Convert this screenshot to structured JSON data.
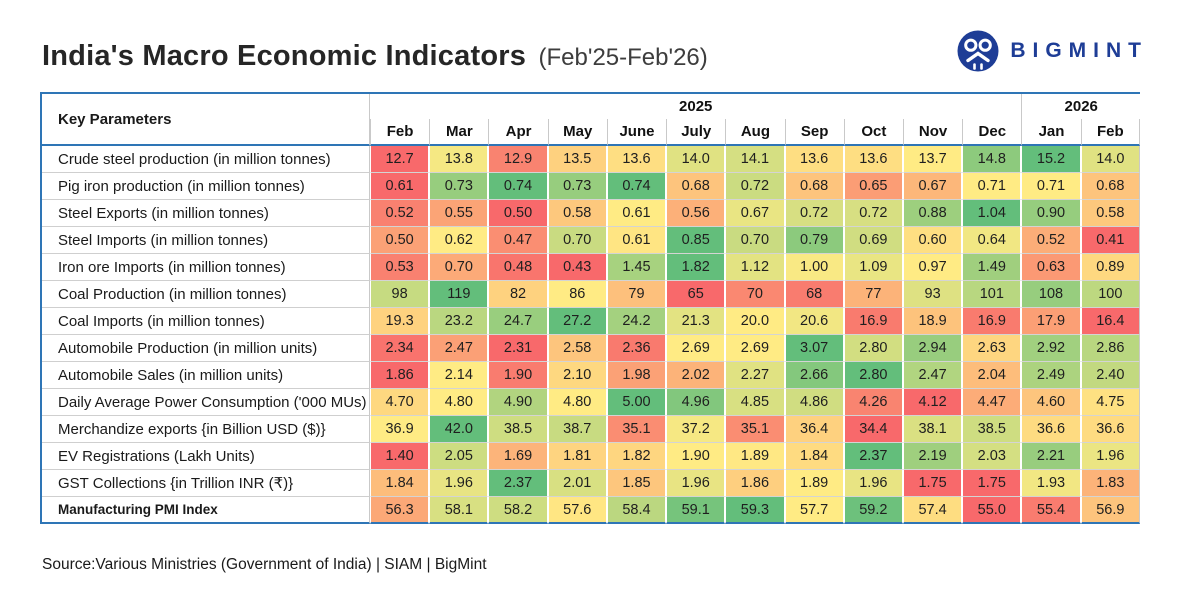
{
  "header": {
    "title": "India's Macro Economic Indicators",
    "subtitle": "(Feb'25-Feb'26)",
    "brand": "BIGMINT"
  },
  "table_meta": {
    "key_parameters_label": "Key Parameters"
  },
  "chart_data": {
    "type": "heatmap",
    "title": "India's Macro Economic Indicators (Feb'25-Feb'26)",
    "columns": [
      "Feb",
      "Mar",
      "Apr",
      "May",
      "June",
      "July",
      "Aug",
      "Sep",
      "Oct",
      "Nov",
      "Dec",
      "Jan",
      "Feb"
    ],
    "year_groups": [
      {
        "label": "2025",
        "span": 11
      },
      {
        "label": "2026",
        "span": 2
      }
    ],
    "rows": [
      {
        "label": "Crude steel production (in million tonnes)",
        "values": [
          "12.7",
          "13.8",
          "12.9",
          "13.5",
          "13.6",
          "14.0",
          "14.1",
          "13.6",
          "13.6",
          "13.7",
          "14.8",
          "15.2",
          "14.0"
        ]
      },
      {
        "label": "Pig iron production (in million tonnes)",
        "values": [
          "0.61",
          "0.73",
          "0.74",
          "0.73",
          "0.74",
          "0.68",
          "0.72",
          "0.68",
          "0.65",
          "0.67",
          "0.71",
          "0.71",
          "0.68"
        ]
      },
      {
        "label": "Steel Exports (in million tonnes)",
        "values": [
          "0.52",
          "0.55",
          "0.50",
          "0.58",
          "0.61",
          "0.56",
          "0.67",
          "0.72",
          "0.72",
          "0.88",
          "1.04",
          "0.90",
          "0.58"
        ]
      },
      {
        "label": "Steel Imports (in million tonnes)",
        "values": [
          "0.50",
          "0.62",
          "0.47",
          "0.70",
          "0.61",
          "0.85",
          "0.70",
          "0.79",
          "0.69",
          "0.60",
          "0.64",
          "0.52",
          "0.41"
        ]
      },
      {
        "label": "Iron ore Imports (in million tonnes)",
        "values": [
          "0.53",
          "0.70",
          "0.48",
          "0.43",
          "1.45",
          "1.82",
          "1.12",
          "1.00",
          "1.09",
          "0.97",
          "1.49",
          "0.63",
          "0.89"
        ]
      },
      {
        "label": "Coal Production (in million tonnes)",
        "values": [
          "98",
          "119",
          "82",
          "86",
          "79",
          "65",
          "70",
          "68",
          "77",
          "93",
          "101",
          "108",
          "100"
        ]
      },
      {
        "label": "Coal Imports (in million tonnes)",
        "values": [
          "19.3",
          "23.2",
          "24.7",
          "27.2",
          "24.2",
          "21.3",
          "20.0",
          "20.6",
          "16.9",
          "18.9",
          "16.9",
          "17.9",
          "16.4"
        ]
      },
      {
        "label": "Automobile Production (in million units)",
        "values": [
          "2.34",
          "2.47",
          "2.31",
          "2.58",
          "2.36",
          "2.69",
          "2.69",
          "3.07",
          "2.80",
          "2.94",
          "2.63",
          "2.92",
          "2.86"
        ]
      },
      {
        "label": "Automobile Sales (in million units)",
        "values": [
          "1.86",
          "2.14",
          "1.90",
          "2.10",
          "1.98",
          "2.02",
          "2.27",
          "2.66",
          "2.80",
          "2.47",
          "2.04",
          "2.49",
          "2.40"
        ]
      },
      {
        "label": "Daily Average Power Consumption ('000 MUs)",
        "values": [
          "4.70",
          "4.80",
          "4.90",
          "4.80",
          "5.00",
          "4.96",
          "4.85",
          "4.86",
          "4.26",
          "4.12",
          "4.47",
          "4.60",
          "4.75"
        ]
      },
      {
        "label": "Merchandize exports {in Billion USD ($)}",
        "values": [
          "36.9",
          "42.0",
          "38.5",
          "38.7",
          "35.1",
          "37.2",
          "35.1",
          "36.4",
          "34.4",
          "38.1",
          "38.5",
          "36.6",
          "36.6"
        ]
      },
      {
        "label": "EV Registrations (Lakh Units)",
        "values": [
          "1.40",
          "2.05",
          "1.69",
          "1.81",
          "1.82",
          "1.90",
          "1.89",
          "1.84",
          "2.37",
          "2.19",
          "2.03",
          "2.21",
          "1.96"
        ]
      },
      {
        "label": "GST Collections {in Trillion INR (₹)}",
        "values": [
          "1.84",
          "1.96",
          "2.37",
          "2.01",
          "1.85",
          "1.96",
          "1.86",
          "1.89",
          "1.96",
          "1.75",
          "1.75",
          "1.93",
          "1.83"
        ]
      },
      {
        "label": "Manufacturing PMI Index",
        "emphasis": true,
        "values": [
          "56.3",
          "58.1",
          "58.2",
          "57.6",
          "58.4",
          "59.1",
          "59.3",
          "57.7",
          "59.2",
          "57.4",
          "55.0",
          "55.4",
          "56.9"
        ]
      }
    ],
    "color_scale": {
      "min_color": "#F8696B",
      "mid_color": "#FFEB84",
      "max_color": "#63BE7B",
      "midpoint": "per-row median"
    },
    "legend_position": "none",
    "grid": true
  },
  "footer": {
    "source": "Source:Various Ministries (Government of India) | SIAM | BigMint"
  },
  "colors": {
    "accent_blue": "#2E75B6",
    "brand_blue": "#1E3D96",
    "grid_gray": "#c9c9c9"
  }
}
